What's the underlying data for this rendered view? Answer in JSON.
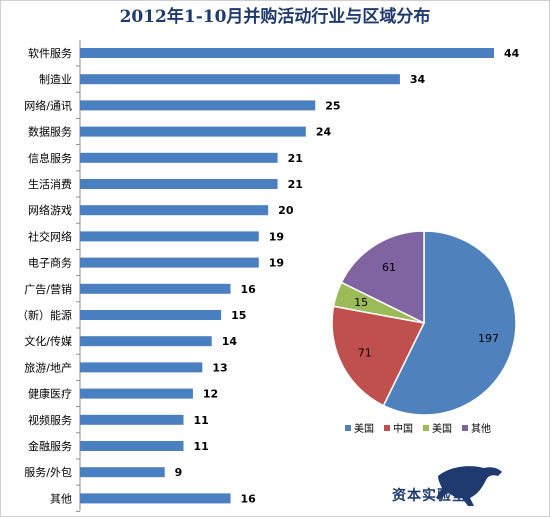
{
  "chart_data": [
    {
      "type": "bar",
      "orientation": "horizontal",
      "title": "2012年1-10月并购活动行业与区域分布",
      "categories": [
        "软件服务",
        "制造业",
        "网络/通讯",
        "数据服务",
        "信息服务",
        "生活消费",
        "网络游戏",
        "社交网络",
        "电子商务",
        "广告/营销",
        "（新）能源",
        "文化/传媒",
        "旅游/地产",
        "健康医疗",
        "视频服务",
        "金融服务",
        "服务/外包",
        "其他"
      ],
      "values": [
        44,
        34,
        25,
        24,
        21,
        21,
        20,
        19,
        19,
        16,
        15,
        14,
        13,
        12,
        11,
        11,
        9,
        16
      ],
      "xlim": [
        0,
        44
      ],
      "grid": false,
      "color": "#4a7fc1"
    },
    {
      "type": "pie",
      "labels": [
        "美国",
        "中国",
        "美国",
        "其他"
      ],
      "values": [
        197,
        71,
        15,
        61
      ],
      "colors": [
        "#4f81bd",
        "#c0504d",
        "#9bbb59",
        "#8064a2"
      ],
      "legend_position": "bottom"
    }
  ],
  "logo": {
    "text": "资本实验室",
    "icon": "panther-icon"
  }
}
